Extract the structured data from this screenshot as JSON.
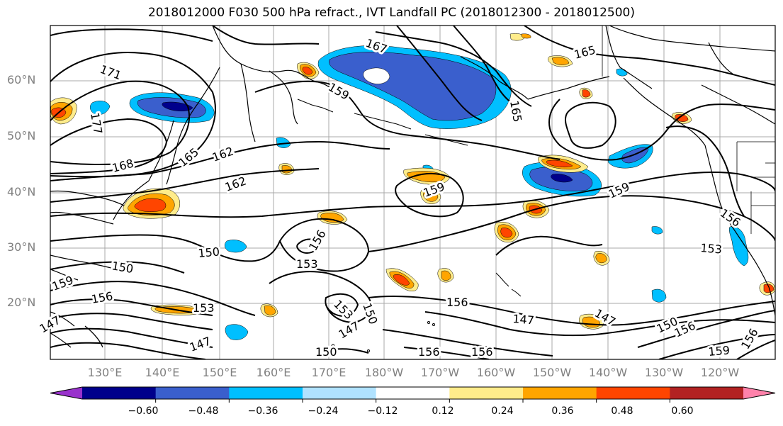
{
  "title": "2018012000 F030 500 hPa refract., IVT Landfall PC (2018012300 - 2018012500)",
  "lat_labels": [
    "60°N",
    "50°N",
    "40°N",
    "30°N",
    "20°N"
  ],
  "lon_labels": [
    "130°E",
    "140°E",
    "150°E",
    "160°E",
    "170°E",
    "180°W",
    "170°W",
    "160°W",
    "150°W",
    "140°W",
    "130°W",
    "120°W"
  ],
  "colorbar": {
    "colors": [
      "#9932cc",
      "#00008b",
      "#3a5fcd",
      "#00bfff",
      "#b0e2ff",
      "#ffffff",
      "#ffec8b",
      "#ffa500",
      "#ff4500",
      "#b22222",
      "#ff82ab"
    ],
    "ticks": [
      "−0.60",
      "−0.48",
      "−0.36",
      "−0.24",
      "−0.12",
      "0.12",
      "0.24",
      "0.36",
      "0.48",
      "0.60"
    ]
  },
  "contour_labels": [
    "171",
    "177",
    "168",
    "165",
    "162",
    "162",
    "167",
    "159",
    "165",
    "165",
    "159",
    "159",
    "156",
    "153",
    "150",
    "150",
    "159",
    "156",
    "153",
    "147",
    "147",
    "153",
    "156",
    "150",
    "147",
    "150",
    "156",
    "156",
    "153",
    "156",
    "147",
    "147",
    "150",
    "156",
    "159",
    "156"
  ]
}
